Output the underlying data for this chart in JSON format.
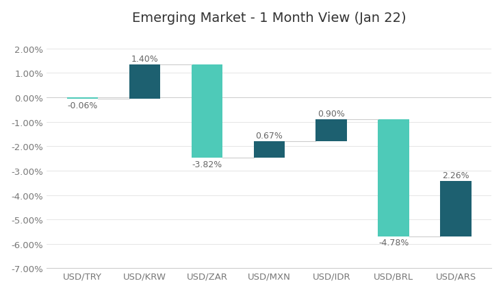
{
  "title": "Emerging Market - 1 Month View (Jan 22)",
  "categories": [
    "USD/TRY",
    "USD/KRW",
    "USD/ZAR",
    "USD/MXN",
    "USD/IDR",
    "USD/BRL",
    "USD/ARS"
  ],
  "changes": [
    -0.06,
    1.4,
    -3.82,
    0.67,
    0.9,
    -4.78,
    2.26
  ],
  "labels": [
    "-0.06%",
    "1.40%",
    "-3.82%",
    "0.67%",
    "0.90%",
    "-4.78%",
    "2.26%"
  ],
  "bar_colors_pos": "#1d6070",
  "bar_colors_neg": "#4ecab8",
  "ylim": [
    -7.0,
    2.5
  ],
  "yticks": [
    -7.0,
    -6.0,
    -5.0,
    -4.0,
    -3.0,
    -2.0,
    -1.0,
    0.0,
    1.0,
    2.0
  ],
  "ytick_labels": [
    "-7.00%",
    "-6.00%",
    "-5.00%",
    "-4.00%",
    "-3.00%",
    "-2.00%",
    "-1.00%",
    "0.00%",
    "1.00%",
    "2.00%"
  ],
  "background_color": "#ffffff",
  "title_fontsize": 14,
  "label_fontsize": 9,
  "axis_label_fontsize": 9.5,
  "bar_width": 0.5,
  "connector_color": "#cccccc",
  "connector_linewidth": 0.8
}
